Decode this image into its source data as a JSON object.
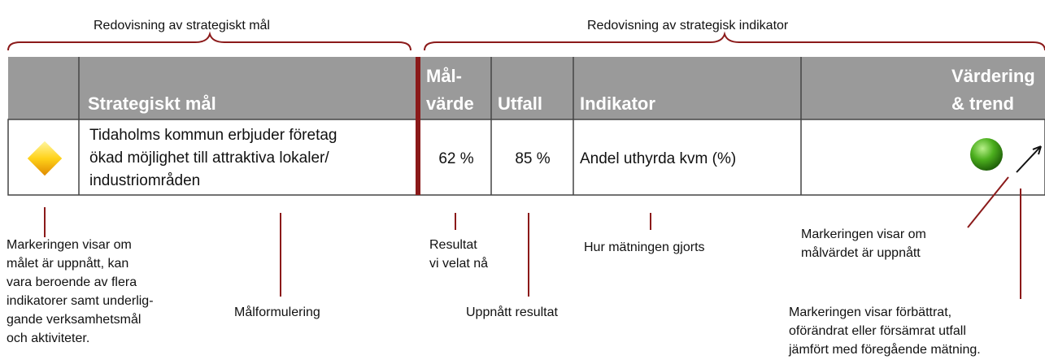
{
  "header": {
    "left_group": "Redovisning av strategiskt mål",
    "right_group": "Redovisning av strategisk indikator"
  },
  "table": {
    "headers": [
      [
        "Strategiskt mål"
      ],
      [
        "Mål-",
        "värde"
      ],
      [
        "Utfall"
      ],
      [
        "Indikator"
      ],
      [
        "Värdering",
        "& trend"
      ]
    ],
    "row": {
      "goal": [
        "Tidaholms kommun erbjuder företag",
        "ökad möjlighet till attraktiva lokaler/",
        "industriområden"
      ],
      "target": "62 %",
      "outcome": "85 %",
      "indicator": "Andel uthyrda kvm (%)"
    }
  },
  "annotations": [
    {
      "lines": [
        "Markeringen visar om",
        "målet är uppnått, kan",
        "vara beroende av flera",
        "indikatorer samt underlig-",
        "gande verksamhetsmål",
        "och  aktiviteter."
      ]
    },
    {
      "lines": [
        "Målformulering"
      ]
    },
    {
      "lines": [
        "Resultat",
        "vi velat nå"
      ]
    },
    {
      "lines": [
        "Uppnått resultat"
      ]
    },
    {
      "lines": [
        "Hur mätningen gjorts"
      ]
    },
    {
      "lines": [
        "Markeringen visar om",
        "målvärdet är uppnått"
      ]
    },
    {
      "lines": [
        "Markeringen visar förbättrat,",
        "oförändrat eller försämrat utfall",
        "jämfört med föregående mätning."
      ]
    }
  ]
}
